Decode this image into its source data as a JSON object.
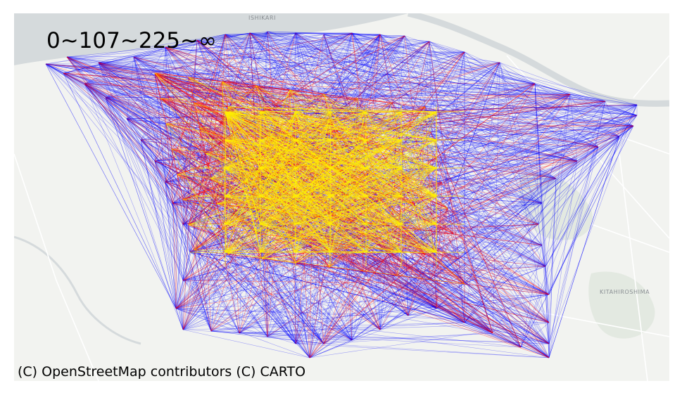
{
  "legend": {
    "text": "0~107~225~∞",
    "colors": {
      "low": "#0000ff",
      "mid": "#ff0000",
      "high": "#ffee00"
    }
  },
  "attribution": "(C) OpenStreetMap contributors (C) CARTO",
  "basemap": {
    "labels": [
      "ISHIKARI",
      "KITAHIROSHIMA"
    ],
    "colors": {
      "land": "#f2f3f0",
      "water": "#d5dadc",
      "roads": "#ffffff",
      "green": "#e3e9e1"
    }
  }
}
